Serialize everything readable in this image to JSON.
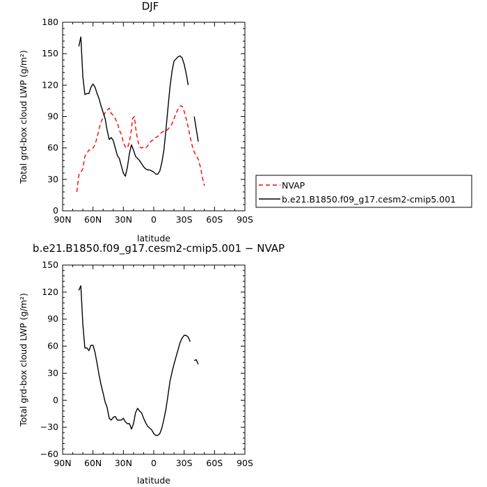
{
  "chart_data": [
    {
      "type": "line",
      "title": "DJF",
      "xlabel": "latitude",
      "ylabel": "Total grd-box cloud LWP (g/m²)",
      "xlim": [
        90,
        -90
      ],
      "ylim": [
        0,
        180
      ],
      "xticks": [
        90,
        60,
        30,
        0,
        -30,
        -60,
        -90
      ],
      "xtick_labels": [
        "90N",
        "60N",
        "30N",
        "0",
        "30S",
        "60S",
        "90S"
      ],
      "yticks": [
        0,
        30,
        60,
        90,
        120,
        150,
        180
      ],
      "ytick_labels": [
        "0",
        "30",
        "60",
        "90",
        "120",
        "150",
        "180"
      ],
      "legend": {
        "position": "right",
        "items": [
          "NVAP",
          "b.e21.B1850.f09_g17.cesm2-cmip5.001"
        ]
      },
      "series": [
        {
          "name": "NVAP",
          "color": "#ff0000",
          "dash": "dashed",
          "points": [
            [
              76,
              18
            ],
            [
              74,
              34
            ],
            [
              70,
              40
            ],
            [
              68,
              52
            ],
            [
              66,
              55
            ],
            [
              64,
              58
            ],
            [
              62,
              58
            ],
            [
              60,
              60
            ],
            [
              58,
              63
            ],
            [
              56,
              70
            ],
            [
              54,
              78
            ],
            [
              52,
              85
            ],
            [
              50,
              89
            ],
            [
              48,
              94
            ],
            [
              46,
              96
            ],
            [
              44,
              98
            ],
            [
              42,
              93
            ],
            [
              40,
              91
            ],
            [
              38,
              88
            ],
            [
              36,
              84
            ],
            [
              34,
              77
            ],
            [
              32,
              73
            ],
            [
              30,
              65
            ],
            [
              28,
              61
            ],
            [
              26,
              60
            ],
            [
              24,
              66
            ],
            [
              22,
              78
            ],
            [
              21,
              88
            ],
            [
              19,
              90
            ],
            [
              18,
              80
            ],
            [
              16,
              68
            ],
            [
              14,
              61
            ],
            [
              12,
              60
            ],
            [
              10,
              61
            ],
            [
              8,
              60
            ],
            [
              6,
              62
            ],
            [
              4,
              65
            ],
            [
              2,
              67
            ],
            [
              0,
              68
            ],
            [
              -2,
              70
            ],
            [
              -4,
              71
            ],
            [
              -6,
              73
            ],
            [
              -8,
              75
            ],
            [
              -10,
              76
            ],
            [
              -12,
              76
            ],
            [
              -14,
              78
            ],
            [
              -16,
              80
            ],
            [
              -18,
              83
            ],
            [
              -20,
              88
            ],
            [
              -22,
              93
            ],
            [
              -24,
              97
            ],
            [
              -26,
              100
            ],
            [
              -28,
              100
            ],
            [
              -30,
              95
            ],
            [
              -32,
              88
            ],
            [
              -34,
              80
            ],
            [
              -36,
              70
            ],
            [
              -38,
              62
            ],
            [
              -40,
              56
            ],
            [
              -42,
              53
            ],
            [
              -44,
              49
            ],
            [
              -46,
              42
            ],
            [
              -48,
              32
            ],
            [
              -50,
              24
            ]
          ]
        },
        {
          "name": "b.e21.B1850.f09_g17.cesm2-cmip5.001",
          "color": "#000000",
          "dash": "solid",
          "segments": [
            [
              [
                74,
                157
              ],
              [
                72,
                166
              ],
              [
                70,
                128
              ],
              [
                68,
                111
              ],
              [
                66,
                112
              ],
              [
                64,
                112
              ],
              [
                62,
                118
              ],
              [
                60,
                121
              ],
              [
                58,
                118
              ],
              [
                56,
                112
              ],
              [
                54,
                107
              ],
              [
                52,
                100
              ],
              [
                50,
                94
              ],
              [
                48,
                88
              ],
              [
                46,
                77
              ],
              [
                44,
                68
              ],
              [
                42,
                70
              ],
              [
                40,
                67
              ],
              [
                38,
                60
              ],
              [
                36,
                53
              ],
              [
                34,
                50
              ],
              [
                32,
                43
              ],
              [
                30,
                36
              ],
              [
                28,
                33
              ],
              [
                26,
                42
              ],
              [
                24,
                55
              ],
              [
                22,
                63
              ],
              [
                20,
                58
              ],
              [
                18,
                52
              ],
              [
                16,
                50
              ],
              [
                14,
                48
              ],
              [
                12,
                45
              ],
              [
                10,
                42
              ],
              [
                8,
                40
              ],
              [
                6,
                39
              ],
              [
                4,
                39
              ],
              [
                2,
                38
              ],
              [
                0,
                37
              ],
              [
                -2,
                35
              ],
              [
                -4,
                35
              ],
              [
                -6,
                38
              ],
              [
                -8,
                46
              ],
              [
                -10,
                58
              ],
              [
                -12,
                77
              ],
              [
                -14,
                98
              ],
              [
                -16,
                118
              ],
              [
                -18,
                133
              ],
              [
                -20,
                143
              ],
              [
                -22,
                145
              ],
              [
                -24,
                147
              ],
              [
                -26,
                148
              ],
              [
                -28,
                146
              ],
              [
                -30,
                140
              ],
              [
                -32,
                131
              ],
              [
                -34,
                120
              ]
            ],
            [
              [
                -40,
                90
              ],
              [
                -44,
                66
              ]
            ]
          ]
        }
      ]
    },
    {
      "type": "line",
      "title": "b.e21.B1850.f09_g17.cesm2-cmip5.001 − NVAP",
      "xlabel": "latitude",
      "ylabel": "Total grd-box cloud LWP (g/m²)",
      "xlim": [
        90,
        -90
      ],
      "ylim": [
        -60,
        150
      ],
      "xticks": [
        90,
        60,
        30,
        0,
        -30,
        -60,
        -90
      ],
      "xtick_labels": [
        "90N",
        "60N",
        "30N",
        "0",
        "30S",
        "60S",
        "90S"
      ],
      "yticks": [
        -60,
        -30,
        0,
        30,
        60,
        90,
        120,
        150
      ],
      "ytick_labels": [
        "−60",
        "−30",
        "0",
        "30",
        "60",
        "90",
        "120",
        "150"
      ],
      "series": [
        {
          "color": "#000000",
          "dash": "solid",
          "segments": [
            [
              [
                74,
                122
              ],
              [
                72,
                127
              ],
              [
                70,
                84
              ],
              [
                68,
                58
              ],
              [
                66,
                58
              ],
              [
                64,
                55
              ],
              [
                62,
                61
              ],
              [
                60,
                61
              ],
              [
                58,
                53
              ],
              [
                56,
                41
              ],
              [
                54,
                28
              ],
              [
                52,
                17
              ],
              [
                50,
                8
              ],
              [
                48,
                -2
              ],
              [
                46,
                -8
              ],
              [
                44,
                -20
              ],
              [
                42,
                -22
              ],
              [
                40,
                -19
              ],
              [
                38,
                -18
              ],
              [
                36,
                -22
              ],
              [
                34,
                -22
              ],
              [
                32,
                -22
              ],
              [
                30,
                -20
              ],
              [
                28,
                -24
              ],
              [
                26,
                -26
              ],
              [
                24,
                -26
              ],
              [
                22,
                -32
              ],
              [
                20,
                -26
              ],
              [
                18,
                -14
              ],
              [
                16,
                -9
              ],
              [
                14,
                -12
              ],
              [
                12,
                -14
              ],
              [
                10,
                -20
              ],
              [
                8,
                -25
              ],
              [
                6,
                -29
              ],
              [
                4,
                -31
              ],
              [
                2,
                -33
              ],
              [
                0,
                -37
              ],
              [
                -2,
                -39
              ],
              [
                -4,
                -39
              ],
              [
                -6,
                -37
              ],
              [
                -8,
                -31
              ],
              [
                -10,
                -21
              ],
              [
                -12,
                -10
              ],
              [
                -14,
                5
              ],
              [
                -16,
                21
              ],
              [
                -18,
                31
              ],
              [
                -20,
                40
              ],
              [
                -22,
                48
              ],
              [
                -24,
                56
              ],
              [
                -26,
                64
              ],
              [
                -28,
                69
              ],
              [
                -30,
                72
              ],
              [
                -32,
                72
              ],
              [
                -34,
                70
              ],
              [
                -36,
                65
              ]
            ],
            [
              [
                -40,
                44
              ],
              [
                -42,
                45
              ],
              [
                -44,
                40
              ]
            ]
          ]
        }
      ]
    }
  ]
}
